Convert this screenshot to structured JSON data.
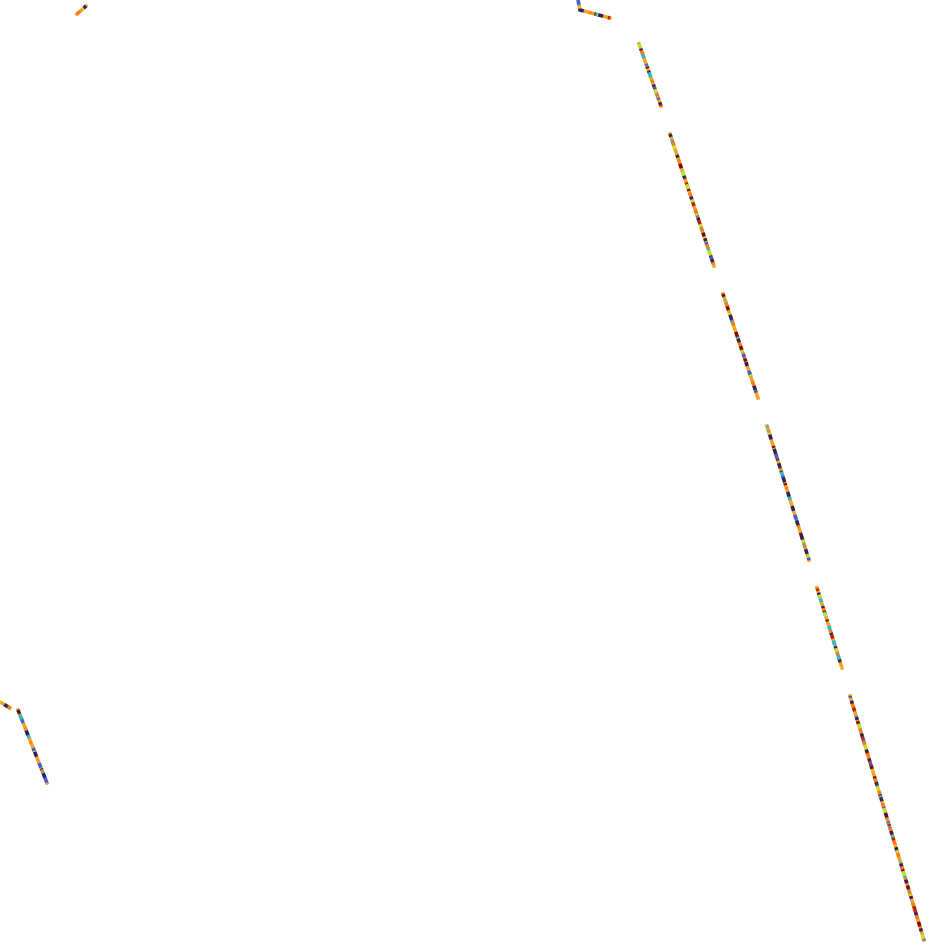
{
  "background_color": "#ffffff",
  "palette": [
    "#f4a020",
    "#c0200a",
    "#7a0a0a",
    "#3a60e0",
    "#20c0d0",
    "#c0e030",
    "#ff7a10",
    "#302060"
  ]
}
